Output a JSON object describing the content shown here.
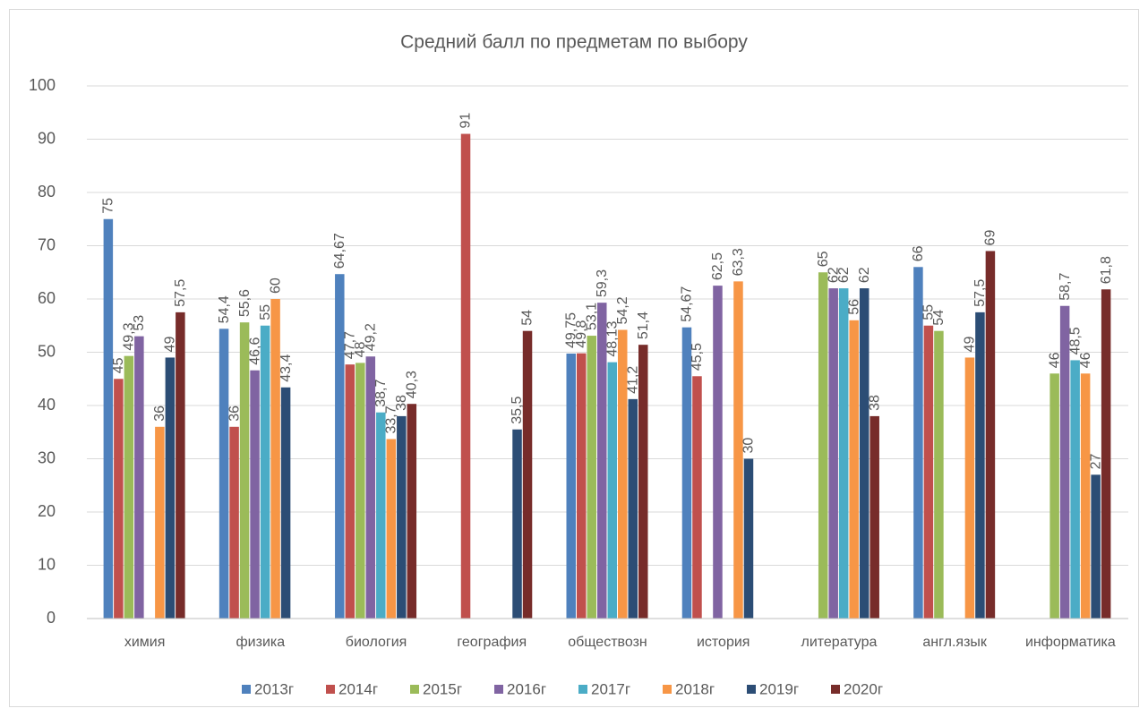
{
  "chart_data": {
    "type": "bar",
    "title": "Средний балл по предметам по выбору",
    "categories": [
      "химия",
      "физика",
      "биология",
      "география",
      "обществозн",
      "история",
      "литература",
      "англ.язык",
      "информатика"
    ],
    "series": [
      {
        "name": "2013г",
        "color": "#4f81bd",
        "values": [
          75,
          54.4,
          64.67,
          null,
          49.75,
          54.67,
          null,
          66,
          null
        ],
        "value_labels": [
          "75",
          "54,4",
          "64,67",
          null,
          "49,75",
          "54,67",
          null,
          "66",
          null
        ]
      },
      {
        "name": "2014г",
        "color": "#c0504d",
        "values": [
          45,
          36,
          47.7,
          91,
          49.8,
          45.5,
          null,
          55,
          null
        ],
        "value_labels": [
          "45",
          "36",
          "47,7",
          "91",
          "49,8",
          "45,5",
          null,
          "55",
          null
        ]
      },
      {
        "name": "2015г",
        "color": "#9bbb59",
        "values": [
          49.3,
          55.6,
          48,
          null,
          53.1,
          null,
          65,
          54,
          46
        ],
        "value_labels": [
          "49,3",
          "55,6",
          "48",
          null,
          "53,1",
          null,
          "65",
          "54",
          "46"
        ]
      },
      {
        "name": "2016г",
        "color": "#8064a2",
        "values": [
          53,
          46.6,
          49.2,
          null,
          59.3,
          62.5,
          62,
          null,
          58.7
        ],
        "value_labels": [
          "53",
          "46,6",
          "49,2",
          null,
          "59,3",
          "62,5",
          "62",
          null,
          "58,7"
        ]
      },
      {
        "name": "2017г",
        "color": "#4bacc6",
        "values": [
          null,
          55,
          38.7,
          null,
          48.13,
          null,
          62,
          null,
          48.5
        ],
        "value_labels": [
          null,
          "55",
          "38,7",
          null,
          "48,13",
          null,
          "62",
          null,
          "48,5"
        ]
      },
      {
        "name": "2018г",
        "color": "#f79646",
        "values": [
          36,
          60,
          33.7,
          null,
          54.2,
          63.3,
          56,
          49,
          46
        ],
        "value_labels": [
          "36",
          "60",
          "33,7",
          null,
          "54,2",
          "63,3",
          "56",
          "49",
          "46"
        ]
      },
      {
        "name": "2019г",
        "color": "#2c4d75",
        "values": [
          49,
          43.4,
          38,
          35.5,
          41.2,
          30,
          62,
          57.5,
          27
        ],
        "value_labels": [
          "49",
          "43,4",
          "38",
          "35,5",
          "41,2",
          "30",
          "62",
          "57,5",
          "27"
        ]
      },
      {
        "name": "2020г",
        "color": "#772c2a",
        "values": [
          57.5,
          null,
          40.3,
          54,
          51.4,
          null,
          38,
          69,
          61.8
        ],
        "value_labels": [
          "57,5",
          null,
          "40,3",
          "54",
          "51,4",
          null,
          "38",
          "69",
          "61,8"
        ]
      }
    ],
    "ylim": [
      0,
      100
    ],
    "yticks": [
      0,
      10,
      20,
      30,
      40,
      50,
      60,
      70,
      80,
      90,
      100
    ],
    "grid": true,
    "legend": "bottom"
  }
}
